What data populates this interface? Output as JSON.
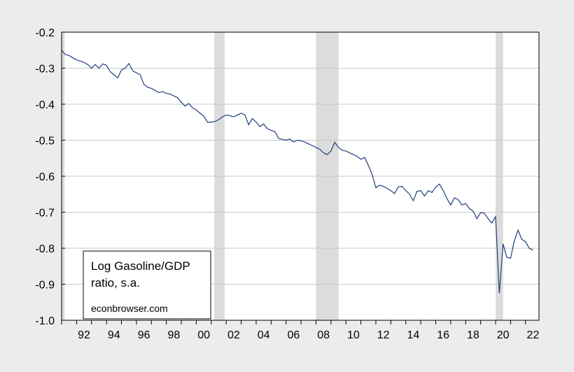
{
  "chart_data": {
    "type": "line",
    "title": "",
    "xlabel": "",
    "ylabel": "",
    "annotation": {
      "line1": "Log Gasoline/GDP",
      "line2": "ratio, s.a.",
      "source": "econbrowser.com"
    },
    "xlim": [
      1991.0,
      2022.9
    ],
    "ylim": [
      -1.0,
      -0.2
    ],
    "y_ticks": [
      -0.2,
      -0.3,
      -0.4,
      -0.5,
      -0.6,
      -0.7,
      -0.8,
      -0.9,
      -1.0
    ],
    "y_tick_labels": [
      "-0.2",
      "-0.3",
      "-0.4",
      "-0.5",
      "-0.6",
      "-0.7",
      "-0.8",
      "-0.9",
      "-1.0"
    ],
    "x_tick_labels": [
      {
        "year": 1992,
        "label": "92"
      },
      {
        "year": 1994,
        "label": "94"
      },
      {
        "year": 1996,
        "label": "96"
      },
      {
        "year": 1998,
        "label": "98"
      },
      {
        "year": 2000,
        "label": "00"
      },
      {
        "year": 2002,
        "label": "02"
      },
      {
        "year": 2004,
        "label": "04"
      },
      {
        "year": 2006,
        "label": "06"
      },
      {
        "year": 2008,
        "label": "08"
      },
      {
        "year": 2010,
        "label": "10"
      },
      {
        "year": 2012,
        "label": "12"
      },
      {
        "year": 2014,
        "label": "14"
      },
      {
        "year": 2016,
        "label": "16"
      },
      {
        "year": 2018,
        "label": "18"
      },
      {
        "year": 2020,
        "label": "20"
      },
      {
        "year": 2022,
        "label": "22"
      }
    ],
    "grid": true,
    "legend": "bottom-left",
    "colors": {
      "line": "#1f3f7a",
      "recession": "#dcdcdc",
      "grid": "#c8c8c8",
      "background": "#ffffff",
      "outer": "#ececec"
    },
    "recessions": [
      {
        "start": 1991.0,
        "end": 1991.2
      },
      {
        "start": 2001.2,
        "end": 2001.9
      },
      {
        "start": 2008.0,
        "end": 2009.5
      },
      {
        "start": 2020.0,
        "end": 2020.5
      }
    ],
    "series": [
      {
        "x": [
          1991.0,
          1991.25,
          1991.5,
          1991.75,
          1992.0,
          1992.25,
          1992.5,
          1992.75,
          1993.0,
          1993.25,
          1993.5,
          1993.75,
          1994.0,
          1994.25,
          1994.5,
          1994.75,
          1995.0,
          1995.25,
          1995.5,
          1995.75,
          1996.0,
          1996.25,
          1996.5,
          1996.75,
          1997.0,
          1997.25,
          1997.5,
          1997.75,
          1998.0,
          1998.25,
          1998.5,
          1998.75,
          1999.0,
          1999.25,
          1999.5,
          1999.75,
          2000.0,
          2000.25,
          2000.5,
          2000.75,
          2001.0,
          2001.25,
          2001.5,
          2001.75,
          2002.0,
          2002.25,
          2002.5,
          2002.75,
          2003.0,
          2003.25,
          2003.5,
          2003.75,
          2004.0,
          2004.25,
          2004.5,
          2004.75,
          2005.0,
          2005.25,
          2005.5,
          2005.75,
          2006.0,
          2006.25,
          2006.5,
          2006.75,
          2007.0,
          2007.25,
          2007.5,
          2007.75,
          2008.0,
          2008.25,
          2008.5,
          2008.75,
          2009.0,
          2009.25,
          2009.5,
          2009.75,
          2010.0,
          2010.25,
          2010.5,
          2010.75,
          2011.0,
          2011.25,
          2011.5,
          2011.75,
          2012.0,
          2012.25,
          2012.5,
          2012.75,
          2013.0,
          2013.25,
          2013.5,
          2013.75,
          2014.0,
          2014.25,
          2014.5,
          2014.75,
          2015.0,
          2015.25,
          2015.5,
          2015.75,
          2016.0,
          2016.25,
          2016.5,
          2016.75,
          2017.0,
          2017.25,
          2017.5,
          2017.75,
          2018.0,
          2018.25,
          2018.5,
          2018.75,
          2019.0,
          2019.25,
          2019.5,
          2019.75,
          2020.0,
          2020.25,
          2020.5,
          2020.75,
          2021.0,
          2021.25,
          2021.5,
          2021.75,
          2022.0,
          2022.25,
          2022.5
        ],
        "y": [
          -0.25,
          -0.262,
          -0.265,
          -0.271,
          -0.277,
          -0.28,
          -0.284,
          -0.29,
          -0.3,
          -0.29,
          -0.3,
          -0.288,
          -0.292,
          -0.31,
          -0.318,
          -0.327,
          -0.305,
          -0.3,
          -0.287,
          -0.307,
          -0.313,
          -0.318,
          -0.345,
          -0.353,
          -0.356,
          -0.362,
          -0.368,
          -0.365,
          -0.37,
          -0.372,
          -0.377,
          -0.382,
          -0.395,
          -0.405,
          -0.398,
          -0.41,
          -0.416,
          -0.425,
          -0.433,
          -0.45,
          -0.45,
          -0.448,
          -0.443,
          -0.435,
          -0.43,
          -0.432,
          -0.435,
          -0.43,
          -0.425,
          -0.43,
          -0.457,
          -0.44,
          -0.45,
          -0.462,
          -0.455,
          -0.468,
          -0.473,
          -0.476,
          -0.495,
          -0.498,
          -0.5,
          -0.497,
          -0.505,
          -0.5,
          -0.502,
          -0.505,
          -0.51,
          -0.515,
          -0.52,
          -0.525,
          -0.535,
          -0.54,
          -0.53,
          -0.506,
          -0.52,
          -0.528,
          -0.53,
          -0.535,
          -0.54,
          -0.545,
          -0.553,
          -0.548,
          -0.57,
          -0.595,
          -0.632,
          -0.625,
          -0.628,
          -0.634,
          -0.64,
          -0.648,
          -0.63,
          -0.628,
          -0.64,
          -0.65,
          -0.668,
          -0.642,
          -0.64,
          -0.655,
          -0.64,
          -0.645,
          -0.63,
          -0.622,
          -0.64,
          -0.662,
          -0.68,
          -0.66,
          -0.665,
          -0.68,
          -0.676,
          -0.69,
          -0.697,
          -0.718,
          -0.701,
          -0.703,
          -0.718,
          -0.73,
          -0.712,
          -0.925,
          -0.788,
          -0.825,
          -0.828,
          -0.78,
          -0.75,
          -0.775,
          -0.782,
          -0.8,
          -0.805
        ]
      }
    ]
  }
}
